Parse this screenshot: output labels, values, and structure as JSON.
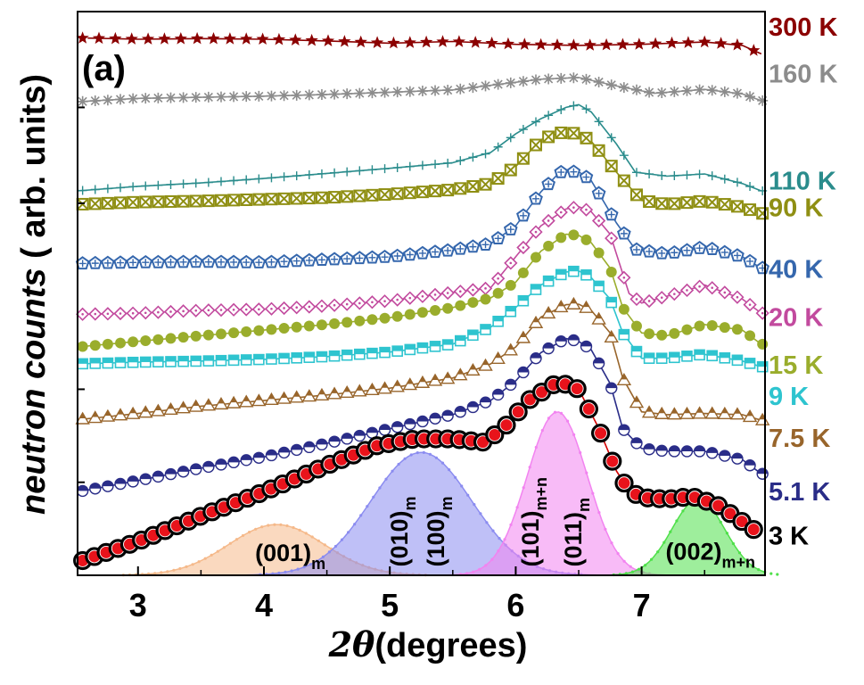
{
  "chart_data": {
    "type": "line",
    "panel_label": "(a)",
    "xlabel_symbol": "2θ",
    "xlabel_text": "(degrees)",
    "ylabel_prefix": "neutron counts",
    "ylabel_suffix": " ( arb. units)",
    "xlim": [
      2.52,
      7.98
    ],
    "ylim": [
      0,
      100
    ],
    "xticks": [
      3,
      4,
      5,
      6,
      7
    ],
    "grid": false,
    "series": [
      {
        "name": "300 K",
        "label": "300 K",
        "color": "#8b0000",
        "marker": "star",
        "filled": true,
        "points": [
          [
            2.6,
            95.3
          ],
          [
            3.0,
            95.1
          ],
          [
            3.5,
            95.2
          ],
          [
            4.0,
            95.1
          ],
          [
            4.5,
            94.8
          ],
          [
            5.0,
            94.4
          ],
          [
            5.5,
            94.7
          ],
          [
            6.0,
            94.2
          ],
          [
            6.5,
            94.0
          ],
          [
            7.0,
            94.2
          ],
          [
            7.5,
            94.6
          ],
          [
            7.8,
            94.0
          ],
          [
            7.95,
            92.5
          ]
        ]
      },
      {
        "name": "160 K",
        "label": "160 K",
        "color": "#8c8c8c",
        "marker": "asterisk",
        "filled": false,
        "points": [
          [
            2.52,
            84.0
          ],
          [
            3.0,
            84.6
          ],
          [
            3.5,
            84.8
          ],
          [
            4.0,
            85.0
          ],
          [
            4.5,
            85.3
          ],
          [
            5.0,
            85.7
          ],
          [
            5.5,
            86.1
          ],
          [
            5.9,
            87.2
          ],
          [
            6.2,
            88.0
          ],
          [
            6.5,
            88.3
          ],
          [
            6.8,
            86.8
          ],
          [
            7.1,
            85.5
          ],
          [
            7.5,
            86.2
          ],
          [
            7.8,
            85.4
          ],
          [
            7.95,
            84.2
          ]
        ]
      },
      {
        "name": "110 K",
        "label": "110 K",
        "color": "#2a8c8c",
        "marker": "plus",
        "filled": false,
        "points": [
          [
            2.52,
            68.2
          ],
          [
            3.0,
            69.0
          ],
          [
            3.5,
            69.6
          ],
          [
            4.0,
            70.4
          ],
          [
            4.5,
            71.3
          ],
          [
            5.0,
            72.2
          ],
          [
            5.5,
            73.2
          ],
          [
            5.8,
            75.0
          ],
          [
            6.0,
            78.3
          ],
          [
            6.2,
            81.0
          ],
          [
            6.4,
            83.0
          ],
          [
            6.5,
            83.5
          ],
          [
            6.6,
            82.2
          ],
          [
            6.8,
            76.5
          ],
          [
            6.95,
            71.5
          ],
          [
            7.2,
            70.8
          ],
          [
            7.5,
            71.2
          ],
          [
            7.8,
            69.5
          ],
          [
            7.95,
            68.2
          ]
        ]
      },
      {
        "name": "90 K",
        "label": "90 K",
        "color": "#8f8f13",
        "marker": "crossbox",
        "filled": false,
        "points": [
          [
            2.52,
            65.8
          ],
          [
            3.0,
            66.2
          ],
          [
            3.5,
            66.4
          ],
          [
            4.0,
            66.7
          ],
          [
            4.5,
            67.0
          ],
          [
            5.0,
            67.6
          ],
          [
            5.5,
            68.4
          ],
          [
            5.8,
            69.5
          ],
          [
            6.0,
            72.5
          ],
          [
            6.2,
            77.3
          ],
          [
            6.35,
            78.5
          ],
          [
            6.5,
            78.4
          ],
          [
            6.6,
            77.0
          ],
          [
            6.8,
            71.5
          ],
          [
            7.0,
            66.5
          ],
          [
            7.2,
            65.8
          ],
          [
            7.5,
            66.4
          ],
          [
            7.8,
            65.3
          ],
          [
            7.95,
            64.2
          ]
        ]
      },
      {
        "name": "40 K",
        "label": "40 K",
        "color": "#3567ad",
        "marker": "pentagon",
        "filled": false,
        "points": [
          [
            2.52,
            55.3
          ],
          [
            3.0,
            55.5
          ],
          [
            3.5,
            55.6
          ],
          [
            4.0,
            55.5
          ],
          [
            4.5,
            56.0
          ],
          [
            5.0,
            56.5
          ],
          [
            5.5,
            57.7
          ],
          [
            5.8,
            58.8
          ],
          [
            6.0,
            62.0
          ],
          [
            6.2,
            68.0
          ],
          [
            6.35,
            71.5
          ],
          [
            6.5,
            71.6
          ],
          [
            6.6,
            70.0
          ],
          [
            6.8,
            62.5
          ],
          [
            6.95,
            57.8
          ],
          [
            7.2,
            57.0
          ],
          [
            7.5,
            58.2
          ],
          [
            7.8,
            56.5
          ],
          [
            7.95,
            54.5
          ]
        ]
      },
      {
        "name": "20 K",
        "label": "20 K",
        "color": "#c24a9e",
        "marker": "diamond",
        "filled": false,
        "points": [
          [
            2.52,
            46.3
          ],
          [
            3.0,
            46.5
          ],
          [
            3.5,
            47.0
          ],
          [
            4.0,
            47.2
          ],
          [
            4.5,
            47.8
          ],
          [
            5.0,
            48.7
          ],
          [
            5.5,
            50.2
          ],
          [
            5.8,
            51.0
          ],
          [
            6.0,
            56.5
          ],
          [
            6.2,
            62.0
          ],
          [
            6.4,
            65.0
          ],
          [
            6.5,
            65.4
          ],
          [
            6.6,
            64.5
          ],
          [
            6.75,
            60.5
          ],
          [
            6.9,
            50.0
          ],
          [
            7.0,
            48.3
          ],
          [
            7.2,
            49.5
          ],
          [
            7.5,
            51.5
          ],
          [
            7.8,
            49.0
          ],
          [
            7.95,
            46.5
          ]
        ]
      },
      {
        "name": "15 K",
        "label": "15 K",
        "color": "#9aad2c",
        "marker": "circle",
        "filled": true,
        "points": [
          [
            2.52,
            40.5
          ],
          [
            3.0,
            41.5
          ],
          [
            3.5,
            42.5
          ],
          [
            4.0,
            43.5
          ],
          [
            4.5,
            44.5
          ],
          [
            5.0,
            45.7
          ],
          [
            5.5,
            47.5
          ],
          [
            5.8,
            49.2
          ],
          [
            6.0,
            52.0
          ],
          [
            6.2,
            57.5
          ],
          [
            6.4,
            60.5
          ],
          [
            6.5,
            60.3
          ],
          [
            6.6,
            59.0
          ],
          [
            6.75,
            54.5
          ],
          [
            6.85,
            47.5
          ],
          [
            7.0,
            43.0
          ],
          [
            7.2,
            42.5
          ],
          [
            7.5,
            44.5
          ],
          [
            7.8,
            43.5
          ],
          [
            7.95,
            41.0
          ]
        ]
      },
      {
        "name": "9 K",
        "label": "9 K",
        "color": "#2ec4cf",
        "marker": "square",
        "filled": false,
        "points": [
          [
            2.52,
            37.5
          ],
          [
            3.0,
            37.8
          ],
          [
            3.5,
            38.0
          ],
          [
            4.0,
            38.3
          ],
          [
            4.5,
            38.8
          ],
          [
            5.0,
            39.6
          ],
          [
            5.5,
            41.0
          ],
          [
            5.8,
            44.0
          ],
          [
            6.0,
            47.5
          ],
          [
            6.2,
            51.5
          ],
          [
            6.4,
            53.8
          ],
          [
            6.5,
            54.0
          ],
          [
            6.6,
            52.8
          ],
          [
            6.75,
            49.0
          ],
          [
            6.85,
            43.0
          ],
          [
            7.0,
            38.5
          ],
          [
            7.2,
            38.5
          ],
          [
            7.5,
            39.2
          ],
          [
            7.8,
            38.0
          ],
          [
            7.95,
            37.0
          ]
        ]
      },
      {
        "name": "7.5 K",
        "label": "7.5 K",
        "color": "#98652b",
        "marker": "triangle",
        "filled": false,
        "points": [
          [
            2.52,
            27.6
          ],
          [
            3.0,
            28.7
          ],
          [
            3.5,
            30.0
          ],
          [
            4.0,
            31.0
          ],
          [
            4.5,
            32.0
          ],
          [
            5.0,
            33.2
          ],
          [
            5.5,
            35.0
          ],
          [
            5.8,
            37.5
          ],
          [
            6.0,
            40.5
          ],
          [
            6.2,
            45.8
          ],
          [
            6.4,
            48.0
          ],
          [
            6.5,
            48.1
          ],
          [
            6.6,
            47.0
          ],
          [
            6.75,
            43.0
          ],
          [
            6.85,
            35.0
          ],
          [
            7.0,
            29.0
          ],
          [
            7.2,
            28.5
          ],
          [
            7.5,
            28.7
          ],
          [
            7.8,
            28.5
          ],
          [
            7.95,
            27.5
          ]
        ]
      },
      {
        "name": "5.1 K",
        "label": "5.1 K",
        "color": "#2a2d88",
        "marker": "halfcircle",
        "filled": false,
        "points": [
          [
            2.52,
            14.8
          ],
          [
            3.0,
            16.8
          ],
          [
            3.5,
            19.0
          ],
          [
            4.0,
            21.0
          ],
          [
            4.5,
            23.4
          ],
          [
            5.0,
            26.0
          ],
          [
            5.5,
            28.5
          ],
          [
            5.8,
            31.0
          ],
          [
            6.0,
            34.5
          ],
          [
            6.2,
            39.5
          ],
          [
            6.4,
            42.0
          ],
          [
            6.5,
            41.5
          ],
          [
            6.6,
            40.0
          ],
          [
            6.75,
            34.0
          ],
          [
            6.85,
            26.0
          ],
          [
            7.0,
            22.5
          ],
          [
            7.2,
            22.0
          ],
          [
            7.5,
            22.0
          ],
          [
            7.8,
            20.5
          ],
          [
            7.95,
            18.0
          ]
        ]
      },
      {
        "name": "3 K",
        "label": "3 K",
        "color": "#000000",
        "marker": "circle",
        "filled": true,
        "points": [
          [
            2.52,
            2.3
          ],
          [
            3.0,
            6.0
          ],
          [
            3.5,
            10.5
          ],
          [
            4.0,
            14.8
          ],
          [
            4.5,
            19.5
          ],
          [
            4.9,
            23.0
          ],
          [
            5.2,
            24.2
          ],
          [
            5.5,
            24.2
          ],
          [
            5.75,
            23.6
          ],
          [
            5.9,
            26.0
          ],
          [
            6.1,
            31.0
          ],
          [
            6.3,
            33.8
          ],
          [
            6.4,
            33.9
          ],
          [
            6.5,
            33.0
          ],
          [
            6.65,
            26.5
          ],
          [
            6.8,
            18.5
          ],
          [
            6.9,
            15.0
          ],
          [
            7.0,
            13.8
          ],
          [
            7.2,
            13.5
          ],
          [
            7.4,
            14.0
          ],
          [
            7.6,
            12.5
          ],
          [
            7.8,
            9.5
          ],
          [
            7.95,
            7.2
          ]
        ]
      }
    ],
    "peaks": [
      {
        "name": "(001)m",
        "label": "(001)",
        "subscript": "m",
        "center": 4.1,
        "width": 0.38,
        "height": 9.0,
        "color": "#f5b98a",
        "label_rotated": false
      },
      {
        "name": "(010)m (100)m",
        "labels": [
          "(010)",
          "(100)"
        ],
        "subscript": "m",
        "center": 5.25,
        "width": 0.4,
        "height": 21.8,
        "color": "#8b8cf0",
        "label_rotated": true
      },
      {
        "name": "(101)m+n (011)m",
        "labels": [
          "(101)",
          "(011)"
        ],
        "subscripts": [
          "m+n",
          "m"
        ],
        "center": 6.33,
        "width": 0.24,
        "height": 29.0,
        "color": "#f283f0",
        "label_rotated": true
      },
      {
        "name": "(002)m+n",
        "label": "(002)",
        "subscript": "m+n",
        "center": 7.45,
        "width": 0.21,
        "height": 13.5,
        "color": "#4fe04a",
        "label_rotated": false
      }
    ]
  }
}
